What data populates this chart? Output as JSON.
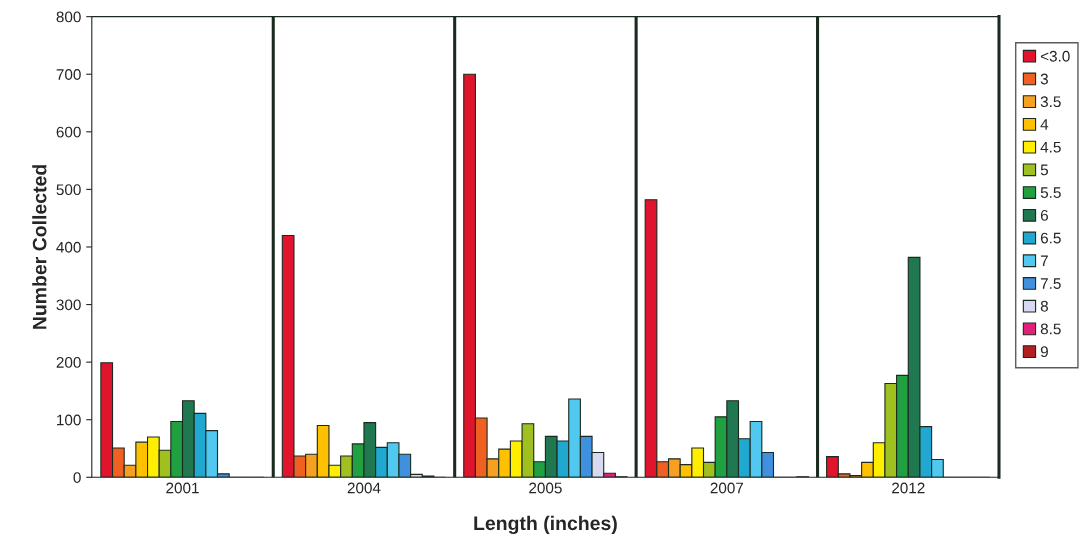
{
  "chart_data": {
    "type": "bar",
    "xlabel": "Length (inches)",
    "ylabel": "Number Collected",
    "categories": [
      "2001",
      "2004",
      "2005",
      "2007",
      "2012"
    ],
    "series": [
      {
        "name": "<3.0",
        "color": "#e0152d",
        "values": [
          199,
          420,
          700,
          482,
          36
        ]
      },
      {
        "name": "3",
        "color": "#f06020",
        "values": [
          51,
          37,
          103,
          27,
          6
        ]
      },
      {
        "name": "3.5",
        "color": "#f5a020",
        "values": [
          21,
          40,
          32,
          32,
          3
        ]
      },
      {
        "name": "4",
        "color": "#ffc000",
        "values": [
          61,
          90,
          49,
          22,
          26
        ]
      },
      {
        "name": "4.5",
        "color": "#ffee00",
        "values": [
          70,
          21,
          63,
          51,
          60
        ]
      },
      {
        "name": "5",
        "color": "#a0c020",
        "values": [
          47,
          37,
          93,
          26,
          163
        ]
      },
      {
        "name": "5.5",
        "color": "#20a040",
        "values": [
          97,
          58,
          27,
          105,
          177
        ]
      },
      {
        "name": "6",
        "color": "#207850",
        "values": [
          133,
          95,
          71,
          133,
          382
        ]
      },
      {
        "name": "6.5",
        "color": "#20a8d0",
        "values": [
          111,
          52,
          63,
          67,
          88
        ]
      },
      {
        "name": "7",
        "color": "#50c8f0",
        "values": [
          81,
          60,
          136,
          97,
          31
        ]
      },
      {
        "name": "7.5",
        "color": "#4090e0",
        "values": [
          6,
          40,
          71,
          43,
          null
        ]
      },
      {
        "name": "8",
        "color": "#d8d8f0",
        "values": [
          0,
          5,
          43,
          null,
          null
        ]
      },
      {
        "name": "8.5",
        "color": "#e0207a",
        "values": [
          0,
          2,
          7,
          null,
          0
        ]
      },
      {
        "name": "9",
        "color": "#b02020",
        "values": [
          0,
          0,
          1,
          1,
          0
        ]
      }
    ],
    "ylim": [
      0,
      800
    ],
    "yticks": [
      0,
      100,
      200,
      300,
      400,
      500,
      600,
      700,
      800
    ],
    "grid": "x",
    "legend": "right"
  }
}
